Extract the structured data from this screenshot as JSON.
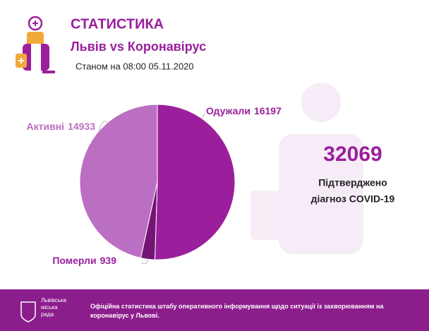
{
  "header": {
    "title": "СТАТИСТИКА",
    "subtitle": "Львів vs Коронавірус",
    "date": "Станом на 08:00 05.11.2020"
  },
  "chart_data": {
    "type": "pie",
    "categories": [
      "Одужали",
      "Померли",
      "Активні"
    ],
    "values": [
      16197,
      939,
      14933
    ],
    "colors": [
      "#9b1f9c",
      "#741475",
      "#bb6fc2"
    ],
    "start": "top",
    "direction": "clockwise"
  },
  "summary": {
    "total": 32069,
    "line1": "Підтверджено",
    "line2": "діагноз COVID-19"
  },
  "footer": {
    "org": [
      "Львівська",
      "міська",
      "рада"
    ],
    "note": "Офіційна статистика штабу оперативного інформування щодо ситуації із захворюванням на коронавірус у Львові."
  }
}
